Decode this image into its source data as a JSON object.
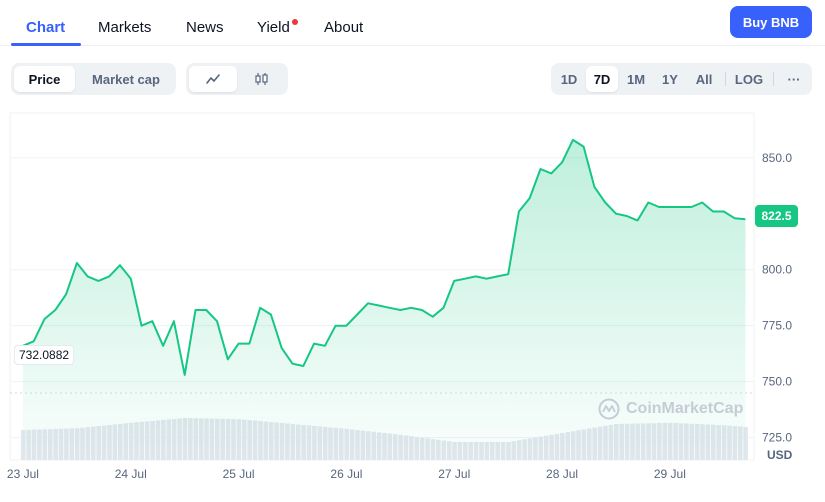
{
  "nav": {
    "tabs": [
      {
        "label": "Chart",
        "active": true
      },
      {
        "label": "Markets",
        "active": false
      },
      {
        "label": "News",
        "active": false
      },
      {
        "label": "Yield",
        "active": false,
        "dot_color": "#ea3943"
      },
      {
        "label": "About",
        "active": false
      }
    ],
    "buy_button": "Buy BNB"
  },
  "toolbar": {
    "metric": [
      "Price",
      "Market cap"
    ],
    "metric_active": "Price",
    "chart_styles": [
      "line-chart-icon",
      "candlestick-icon"
    ],
    "chart_style_active": "line-chart-icon",
    "ranges": [
      "1D",
      "7D",
      "1M",
      "1Y",
      "All"
    ],
    "range_active": "7D",
    "log_label": "LOG",
    "more_label": "···"
  },
  "colors": {
    "accent": "#3861fb",
    "line": "#16c784",
    "volume": "#e3e7ee"
  },
  "chart_data": {
    "type": "area",
    "x_ticks": [
      "23 Jul",
      "24 Jul",
      "25 Jul",
      "26 Jul",
      "27 Jul",
      "28 Jul",
      "29 Jul"
    ],
    "y_ticks": [
      "850.0",
      "800.0",
      "775.0",
      "750.0",
      "725.0"
    ],
    "y_unit": "USD",
    "current_price": "822.5",
    "min_label": "732.0882",
    "ylim": [
      715,
      870
    ],
    "xlim": [
      -0.12,
      6.78
    ],
    "grid": true,
    "series": [
      {
        "type": "line",
        "x": [
          0,
          0.1,
          0.2,
          0.3,
          0.4,
          0.5,
          0.6,
          0.7,
          0.8,
          0.9,
          1.0,
          1.1,
          1.2,
          1.3,
          1.4,
          1.5,
          1.6,
          1.7,
          1.8,
          1.9,
          2.0,
          2.1,
          2.2,
          2.3,
          2.4,
          2.5,
          2.6,
          2.7,
          2.8,
          2.9,
          3.0,
          3.1,
          3.2,
          3.3,
          3.4,
          3.5,
          3.6,
          3.7,
          3.8,
          3.9,
          4.0,
          4.1,
          4.2,
          4.3,
          4.4,
          4.5,
          4.6,
          4.7,
          4.8,
          4.9,
          5.0,
          5.1,
          5.2,
          5.3,
          5.4,
          5.5,
          5.6,
          5.7,
          5.8,
          5.9,
          6.0,
          6.1,
          6.2,
          6.3,
          6.4,
          6.5,
          6.6,
          6.7
        ],
        "y": [
          766,
          768,
          778,
          782,
          789,
          803,
          797,
          795,
          797,
          802,
          796,
          775,
          777,
          766,
          777,
          753,
          782,
          782,
          777,
          760,
          767,
          767,
          783,
          780,
          765,
          758,
          757,
          767,
          766,
          775,
          775,
          780,
          785,
          784,
          783,
          782,
          783,
          782,
          779,
          783,
          795,
          796,
          797,
          796,
          797,
          798,
          826,
          832,
          845,
          843,
          848,
          858,
          855,
          837,
          830,
          825,
          824,
          822,
          830,
          828,
          828,
          828,
          828,
          830,
          826,
          826,
          823,
          822.5
        ]
      },
      {
        "type": "volume",
        "x": [
          0,
          0.5,
          1.0,
          1.5,
          2.0,
          2.5,
          3.0,
          3.5,
          4.0,
          4.5,
          5.0,
          5.5,
          6.0,
          6.5,
          6.7
        ],
        "y": [
          0.5,
          0.53,
          0.62,
          0.7,
          0.68,
          0.6,
          0.52,
          0.42,
          0.3,
          0.3,
          0.45,
          0.6,
          0.62,
          0.58,
          0.55
        ]
      }
    ]
  }
}
